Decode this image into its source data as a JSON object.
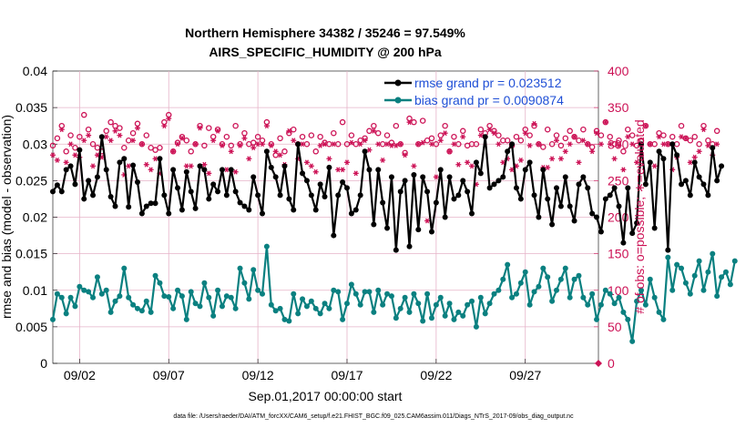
{
  "chart_data": {
    "type": "line",
    "title_line1": "Northern Hemisphere 34382 / 35246 = 97.549%",
    "title_line2": "AIRS_SPECIFIC_HUMIDITY @ 200 hPa",
    "ylabel_left": "rmse and bias (model - observation)",
    "ylabel_right": "# of obs: o=possible; ∗=evaluated",
    "xlabel": "Sep.01,2017 00:00:00 start",
    "footnote": "data file: /Users/raeder/DAI/ATM_forcXX/CAM6_setup/f.e21.FHIST_BGC.f09_025.CAM6assim.011/Diags_NTrS_2017-09/obs_diag_output.nc",
    "ylim_left": [
      0,
      0.04
    ],
    "ylim_right": [
      0,
      400
    ],
    "xlim_days": [
      0.5,
      31.1
    ],
    "left_ticks": [
      "0",
      "0.005",
      "0.01",
      "0.015",
      "0.02",
      "0.025",
      "0.03",
      "0.035",
      "0.04"
    ],
    "right_ticks": [
      "0",
      "50",
      "100",
      "150",
      "200",
      "250",
      "300",
      "350",
      "400"
    ],
    "x_ticks": [
      {
        "day": 2,
        "label": "09/02"
      },
      {
        "day": 7,
        "label": "09/07"
      },
      {
        "day": 12,
        "label": "09/12"
      },
      {
        "day": 17,
        "label": "09/17"
      },
      {
        "day": 22,
        "label": "09/22"
      },
      {
        "day": 27,
        "label": "09/27"
      }
    ],
    "x_start_day": 0.5,
    "x_step_days": 0.25,
    "series": [
      {
        "name": "rmse grand pr = 0.023512",
        "color": "#000000",
        "values": [
          0.0235,
          0.0244,
          0.0235,
          0.0265,
          0.027,
          0.0245,
          0.0292,
          0.0225,
          0.025,
          0.023,
          0.0255,
          0.031,
          0.0265,
          0.0228,
          0.0215,
          0.0275,
          0.028,
          0.0214,
          0.0271,
          0.0248,
          0.0205,
          0.0215,
          0.0219,
          0.0219,
          0.028,
          0.023,
          0.0205,
          0.0265,
          0.024,
          0.021,
          0.0262,
          0.0235,
          0.0212,
          0.027,
          0.0265,
          0.0225,
          0.0245,
          0.0235,
          0.0265,
          0.023,
          0.0265,
          0.0235,
          0.022,
          0.0215,
          0.021,
          0.0255,
          0.023,
          0.0205,
          0.029,
          0.0268,
          0.0255,
          0.023,
          0.027,
          0.0225,
          0.021,
          0.03,
          0.026,
          0.025,
          0.023,
          0.021,
          0.0245,
          0.0228,
          0.0268,
          0.0175,
          0.023,
          0.0248,
          0.024,
          0.0205,
          0.021,
          0.023,
          0.029,
          0.0265,
          0.019,
          0.0265,
          0.022,
          0.0185,
          0.0255,
          0.0155,
          0.0235,
          0.025,
          0.016,
          0.0258,
          0.0183,
          0.0255,
          0.0235,
          0.018,
          0.022,
          0.0265,
          0.02,
          0.0255,
          0.0225,
          0.023,
          0.025,
          0.0235,
          0.0205,
          0.0275,
          0.026,
          0.031,
          0.024,
          0.0245,
          0.025,
          0.0255,
          0.029,
          0.03,
          0.024,
          0.0225,
          0.0265,
          0.0275,
          0.023,
          0.02,
          0.0265,
          0.0225,
          0.019,
          0.024,
          0.0215,
          0.0255,
          0.0215,
          0.0195,
          0.0245,
          0.0255,
          0.024,
          0.0205,
          0.02,
          0.018,
          0.0225,
          0.023,
          0.024,
          0.0215,
          0.0165,
          0.024,
          0.0178,
          0.0192,
          0.03,
          0.0245,
          0.0275,
          0.0185,
          0.029,
          0.028,
          0.0155,
          0.03,
          0.0285,
          0.0245,
          0.025,
          0.023,
          0.0275,
          0.0255,
          0.0245,
          0.023,
          0.0295,
          0.025,
          0.027
        ],
        "markers": "filled circles"
      },
      {
        "name": "bias grand pr = 0.0090874",
        "color": "#0a8080",
        "values": [
          0.006,
          0.0095,
          0.009,
          0.0068,
          0.009,
          0.0078,
          0.0105,
          0.01,
          0.0098,
          0.009,
          0.0118,
          0.0095,
          0.01,
          0.007,
          0.0085,
          0.0092,
          0.013,
          0.009,
          0.008,
          0.0075,
          0.0072,
          0.0085,
          0.007,
          0.012,
          0.011,
          0.0092,
          0.0091,
          0.0075,
          0.01,
          0.0092,
          0.006,
          0.0098,
          0.0082,
          0.0078,
          0.011,
          0.009,
          0.0065,
          0.01,
          0.0078,
          0.0092,
          0.009,
          0.0075,
          0.013,
          0.011,
          0.0088,
          0.0128,
          0.01,
          0.0095,
          0.016,
          0.008,
          0.0072,
          0.0075,
          0.006,
          0.0058,
          0.0095,
          0.0068,
          0.0088,
          0.0078,
          0.0085,
          0.0075,
          0.0068,
          0.0082,
          0.0075,
          0.01,
          0.0098,
          0.006,
          0.0082,
          0.0108,
          0.0095,
          0.008,
          0.0098,
          0.0098,
          0.007,
          0.01,
          0.008,
          0.0095,
          0.0092,
          0.0062,
          0.0075,
          0.009,
          0.007,
          0.0095,
          0.0082,
          0.0058,
          0.0095,
          0.0062,
          0.008,
          0.009,
          0.0065,
          0.0082,
          0.006,
          0.007,
          0.0065,
          0.008,
          0.0085,
          0.005,
          0.009,
          0.0068,
          0.0082,
          0.0095,
          0.01,
          0.0115,
          0.0135,
          0.009,
          0.0095,
          0.011,
          0.0125,
          0.008,
          0.0098,
          0.0105,
          0.013,
          0.0118,
          0.0085,
          0.01,
          0.0115,
          0.013,
          0.009,
          0.0115,
          0.012,
          0.009,
          0.008,
          0.0095,
          0.006,
          0.008,
          0.01,
          0.0095,
          0.0082,
          0.009,
          0.007,
          0.006,
          0.003,
          0.0085,
          0.01,
          0.008,
          0.0115,
          0.009,
          0.007,
          0.006,
          0.0145,
          0.01,
          0.0135,
          0.013,
          0.011,
          0.0095,
          0.012,
          0.014,
          0.01,
          0.0125,
          0.015,
          0.0092,
          0.0118,
          0.0125,
          0.0108,
          0.014
        ],
        "markers": "filled circles"
      }
    ],
    "obs_possible": {
      "marker": "o",
      "color": "#cc1155",
      "values": [
        298,
        308,
        325,
        290,
        312,
        295,
        310,
        340,
        320,
        300,
        295,
        290,
        318,
        330,
        325,
        322,
        295,
        305,
        315,
        328,
        300,
        312,
        295,
        292,
        295,
        330,
        340,
        290,
        302,
        310,
        305,
        290,
        300,
        325,
        298,
        322,
        310,
        320,
        300,
        310,
        298,
        325,
        300,
        315,
        300,
        302,
        310,
        305,
        330,
        300,
        285,
        308,
        290,
        315,
        320,
        300,
        310,
        300,
        312,
        290,
        310,
        302,
        300,
        315,
        300,
        330,
        300,
        312,
        300,
        305,
        308,
        318,
        325,
        315,
        300,
        312,
        302,
        325,
        300,
        288,
        335,
        330,
        300,
        332,
        305,
        308,
        300,
        312,
        325,
        290,
        310,
        300,
        318,
        298,
        300,
        300,
        320,
        315,
        325,
        318,
        312,
        305,
        305,
        298,
        310,
        305,
        320,
        312,
        325,
        300,
        296,
        320,
        300,
        312,
        298,
        308,
        318,
        310,
        305,
        320,
        300,
        296,
        318,
        312,
        330,
        310,
        300,
        305,
        290,
        320,
        312,
        298,
        305,
        325,
        300,
        300,
        315,
        312,
        300,
        310,
        300,
        325,
        308,
        305,
        310,
        300,
        325,
        305,
        300,
        318
      ]
    },
    "obs_evaluated": {
      "marker": "∗",
      "color": "#cc1155",
      "values": [
        285,
        278,
        320,
        275,
        300,
        285,
        282,
        305,
        312,
        270,
        285,
        282,
        310,
        305,
        318,
        312,
        258,
        270,
        305,
        322,
        300,
        272,
        265,
        280,
        260,
        325,
        335,
        290,
        300,
        308,
        270,
        270,
        300,
        322,
        272,
        260,
        305,
        318,
        298,
        265,
        290,
        262,
        298,
        308,
        280,
        295,
        300,
        300,
        325,
        298,
        290,
        285,
        272,
        318,
        305,
        280,
        300,
        275,
        270,
        262,
        298,
        300,
        280,
        300,
        265,
        265,
        275,
        302,
        260,
        300,
        305,
        292,
        318,
        300,
        278,
        300,
        298,
        298,
        300,
        285,
        330,
        270,
        300,
        302,
        195,
        300,
        255,
        305,
        315,
        290,
        300,
        272,
        310,
        275,
        270,
        245,
        312,
        310,
        320,
        315,
        300,
        275,
        280,
        265,
        270,
        278,
        315,
        298,
        328,
        300,
        268,
        268,
        280,
        305,
        280,
        290,
        300,
        310,
        275,
        305,
        300,
        290,
        315,
        300,
        330,
        300,
        280,
        298,
        265,
        310,
        300,
        275,
        285,
        325,
        300,
        270,
        310,
        300,
        300,
        265,
        282,
        310,
        308,
        275,
        282,
        290,
        320,
        298,
        285,
        300
      ]
    },
    "legend_position": "top-right"
  }
}
